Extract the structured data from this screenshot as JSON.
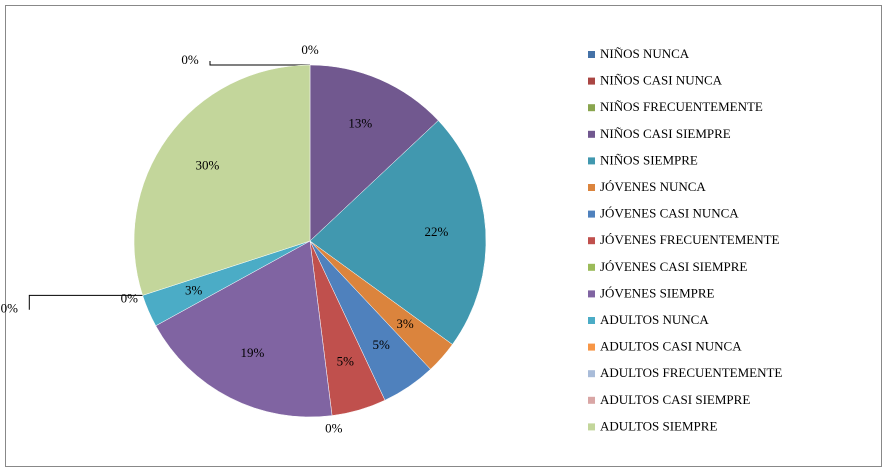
{
  "chart_data": {
    "type": "pie",
    "categories": [
      "NIÑOS NUNCA",
      "NIÑOS CASI NUNCA",
      "NIÑOS FRECUENTEMENTE",
      "NIÑOS CASI SIEMPRE",
      "NIÑOS SIEMPRE",
      "JÓVENES NUNCA",
      "JÓVENES CASI NUNCA",
      "JÓVENES FRECUENTEMENTE",
      "JÓVENES CASI SIEMPRE",
      "JÓVENES SIEMPRE",
      "ADULTOS NUNCA",
      "ADULTOS CASI NUNCA",
      "ADULTOS FRECUENTEMENTE",
      "ADULTOS CASI SIEMPRE",
      "ADULTOS SIEMPRE"
    ],
    "values": [
      0,
      0,
      0,
      13,
      22,
      3,
      5,
      5,
      0,
      19,
      3,
      0,
      0,
      0,
      30
    ],
    "value_labels": [
      "0%",
      "0%",
      null,
      "13%",
      "22%",
      "3%",
      "5%",
      "5%",
      "0%",
      "19%",
      "3%",
      "0%",
      "0%",
      null,
      "30%"
    ],
    "colors": [
      "#4572a7",
      "#aa4643",
      "#89a54e",
      "#71588f",
      "#4198af",
      "#db843d",
      "#4f81bd",
      "#c0504d",
      "#9bbb59",
      "#8064a2",
      "#4bacc6",
      "#f79646",
      "#a9bcd9",
      "#d9a6a5",
      "#c3d69b"
    ],
    "legend": "right"
  }
}
